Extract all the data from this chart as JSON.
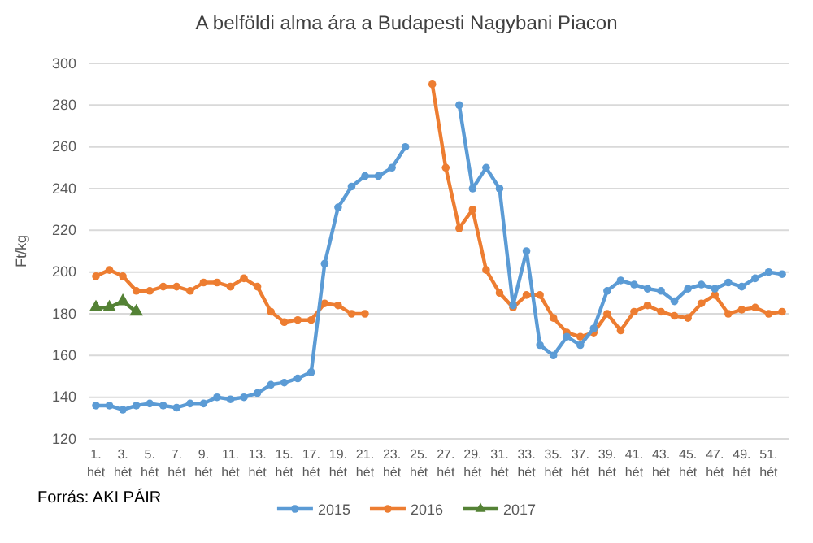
{
  "chart_data": {
    "type": "line",
    "title": "A belföldi alma ára a Budapesti Nagybani Piacon",
    "ylabel": "Ft/kg",
    "categories": [
      "1. hét",
      null,
      "3. hét",
      null,
      "5. hét",
      null,
      "7. hét",
      null,
      "9. hét",
      null,
      "11. hét",
      null,
      "13. hét",
      null,
      "15. hét",
      null,
      "17. hét",
      null,
      "19. hét",
      null,
      "21. hét",
      null,
      "23. hét",
      null,
      "25. hét",
      null,
      "27. hét",
      null,
      "29. hét",
      null,
      "31. hét",
      null,
      "33. hét",
      null,
      "35. hét",
      null,
      "37. hét",
      null,
      "39. hét",
      null,
      "41. hét",
      null,
      "43. hét",
      null,
      "45. hét",
      null,
      "47. hét",
      null,
      "49. hét",
      null,
      "51. hét",
      null
    ],
    "series": [
      {
        "name": "2015",
        "color": "#5b9bd5",
        "marker": "circle",
        "values": [
          136,
          136,
          134,
          136,
          137,
          136,
          135,
          137,
          137,
          140,
          139,
          140,
          142,
          146,
          147,
          149,
          152,
          204,
          231,
          241,
          246,
          246,
          250,
          260,
          null,
          null,
          null,
          280,
          240,
          250,
          240,
          184,
          210,
          165,
          160,
          169,
          165,
          173,
          191,
          196,
          194,
          192,
          191,
          186,
          192,
          194,
          192,
          195,
          193,
          197,
          200,
          199
        ]
      },
      {
        "name": "2016",
        "color": "#ed7d31",
        "marker": "circle",
        "values": [
          198,
          201,
          198,
          191,
          191,
          193,
          193,
          191,
          195,
          195,
          193,
          197,
          193,
          181,
          176,
          177,
          177,
          185,
          184,
          180,
          180,
          null,
          null,
          null,
          null,
          290,
          250,
          221,
          230,
          201,
          190,
          183,
          189,
          189,
          178,
          171,
          169,
          171,
          180,
          172,
          181,
          184,
          181,
          179,
          178,
          185,
          189,
          180,
          182,
          183,
          180,
          181
        ]
      },
      {
        "name": "2017",
        "color": "#548235",
        "marker": "triangle",
        "values": [
          183,
          183,
          186,
          181,
          null,
          null,
          null,
          null,
          null,
          null,
          null,
          null,
          null,
          null,
          null,
          null,
          null,
          null,
          null,
          null,
          null,
          null,
          null,
          null,
          null,
          null,
          null,
          null,
          null,
          null,
          null,
          null,
          null,
          null,
          null,
          null,
          null,
          null,
          null,
          null,
          null,
          null,
          null,
          null,
          null,
          null,
          null,
          null,
          null,
          null,
          null,
          null
        ]
      }
    ],
    "ylim": [
      120,
      300
    ],
    "yticks": [
      120,
      140,
      160,
      180,
      200,
      220,
      240,
      260,
      280,
      300
    ],
    "grid": "y",
    "legend": "bottom",
    "line_style": "solid",
    "annotations": [
      "Forrás: AKI PÁIR"
    ]
  }
}
